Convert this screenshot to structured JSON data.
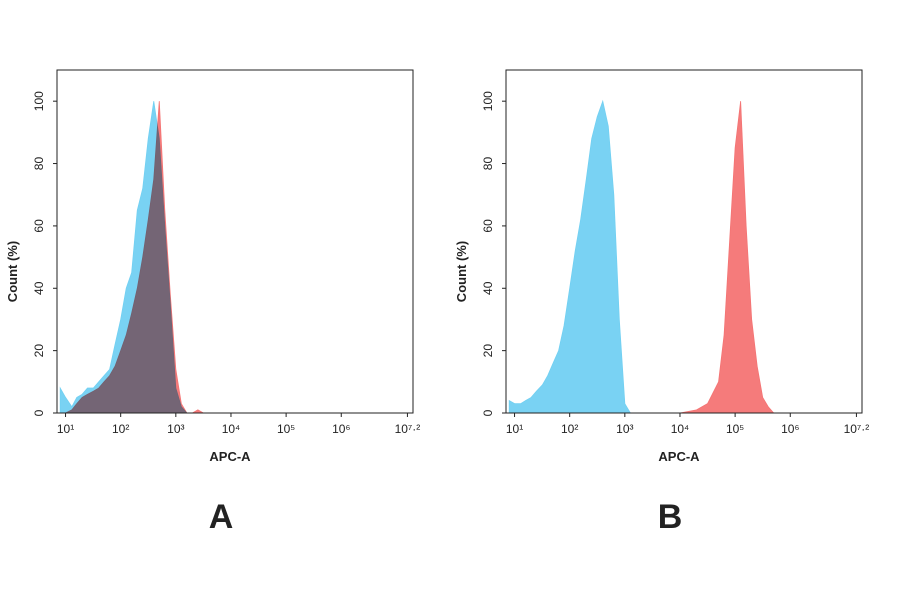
{
  "chart_data": [
    {
      "type": "area",
      "xscale": "log",
      "panel_label": "A",
      "xlabel": "APC-A",
      "ylabel": "Count (%)",
      "xlim": [
        7,
        20000000
      ],
      "ylim": [
        0,
        110
      ],
      "xticks": [
        {
          "value": 10,
          "label": "10¹"
        },
        {
          "value": 100,
          "label": "10²"
        },
        {
          "value": 1000,
          "label": "10³"
        },
        {
          "value": 10000,
          "label": "10⁴"
        },
        {
          "value": 100000,
          "label": "10⁵"
        },
        {
          "value": 1000000,
          "label": "10⁶"
        },
        {
          "value": 15848932,
          "label": "10⁷·²"
        }
      ],
      "yticks": [
        0,
        20,
        40,
        60,
        80,
        100
      ],
      "x": [
        8,
        10,
        13,
        16,
        20,
        25,
        32,
        40,
        50,
        63,
        79,
        100,
        126,
        158,
        200,
        251,
        316,
        398,
        501,
        631,
        794,
        1000,
        1259,
        1585,
        1995,
        2512,
        3162,
        5000,
        10000,
        31623,
        100000,
        316228,
        1000000,
        3162278,
        10000000
      ],
      "series": [
        {
          "color": "#f47474",
          "values": [
            0,
            0,
            1,
            3,
            5,
            6,
            7,
            8,
            10,
            12,
            15,
            20,
            25,
            32,
            40,
            50,
            62,
            75,
            100,
            65,
            38,
            14,
            3,
            0,
            0,
            1,
            0,
            0,
            0,
            0,
            0,
            0,
            0,
            0,
            0
          ]
        },
        {
          "color": "#72d0f2",
          "values": [
            8,
            5,
            2,
            5,
            6,
            8,
            8,
            10,
            12,
            14,
            22,
            30,
            40,
            45,
            65,
            72,
            88,
            100,
            88,
            60,
            35,
            8,
            2,
            0,
            0,
            0,
            0,
            0,
            0,
            0,
            0,
            0,
            0,
            0,
            0
          ]
        }
      ]
    },
    {
      "type": "area",
      "xscale": "log",
      "panel_label": "B",
      "xlabel": "APC-A",
      "ylabel": "Count (%)",
      "xlim": [
        7,
        20000000
      ],
      "ylim": [
        0,
        110
      ],
      "xticks": [
        {
          "value": 10,
          "label": "10¹"
        },
        {
          "value": 100,
          "label": "10²"
        },
        {
          "value": 1000,
          "label": "10³"
        },
        {
          "value": 10000,
          "label": "10⁴"
        },
        {
          "value": 100000,
          "label": "10⁵"
        },
        {
          "value": 1000000,
          "label": "10⁶"
        },
        {
          "value": 15848932,
          "label": "10⁷·²"
        }
      ],
      "yticks": [
        0,
        20,
        40,
        60,
        80,
        100
      ],
      "x": [
        8,
        10,
        13,
        16,
        20,
        25,
        32,
        40,
        50,
        63,
        79,
        100,
        126,
        158,
        200,
        251,
        316,
        398,
        501,
        631,
        794,
        1000,
        1259,
        1585,
        2512,
        5012,
        10000,
        20000,
        31623,
        50119,
        63096,
        79433,
        100000,
        125893,
        158489,
        199526,
        251189,
        316228,
        398107,
        501187,
        1000000,
        10000000
      ],
      "series": [
        {
          "color": "#72d0f2",
          "values": [
            4,
            3,
            3,
            4,
            5,
            7,
            9,
            12,
            16,
            20,
            28,
            40,
            52,
            62,
            75,
            88,
            95,
            100,
            92,
            70,
            30,
            3,
            0,
            0,
            0,
            0,
            0,
            0,
            0,
            0,
            0,
            0,
            0,
            0,
            0,
            0,
            0,
            0,
            0,
            0,
            0,
            0
          ]
        },
        {
          "color": "#f47474",
          "values": [
            0,
            0,
            0,
            0,
            0,
            0,
            0,
            0,
            0,
            0,
            0,
            0,
            0,
            0,
            0,
            0,
            0,
            0,
            0,
            0,
            0,
            0,
            0,
            0,
            0,
            0,
            0,
            1,
            3,
            10,
            25,
            55,
            85,
            100,
            60,
            30,
            15,
            5,
            2,
            0,
            0,
            0
          ]
        }
      ]
    }
  ]
}
